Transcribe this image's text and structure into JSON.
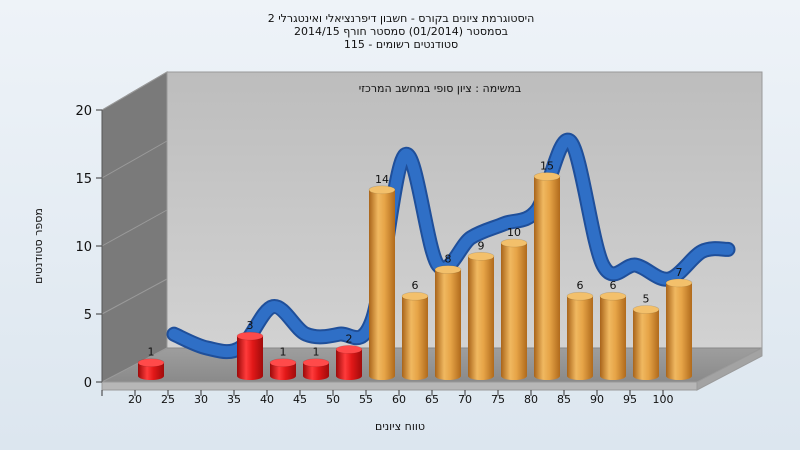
{
  "chart_data": {
    "type": "bar",
    "title_lines": [
      "היסטוגרמת ציונים בקורס - חשבון דיפרנציאלי ואינטגרלי 2",
      "בסמסטר  (01/2014)  סמסטר חורף 2014/15",
      "115 - סטודנטים רשומים"
    ],
    "subtitle": "במשימה : ציון סופי במחשב המרכזי",
    "xlabel": "טווח ציונים",
    "ylabel": "מספר סטודנטים",
    "ylim": [
      0,
      20
    ],
    "yticks": [
      0,
      5,
      10,
      15,
      20
    ],
    "x_ticks": [
      "20",
      "25",
      "30",
      "35",
      "40",
      "45",
      "50",
      "55",
      "60",
      "65",
      "70",
      "75",
      "80",
      "85",
      "90",
      "95",
      "100"
    ],
    "categories": [
      "20",
      "25",
      "30",
      "35",
      "40",
      "45",
      "50",
      "55",
      "60",
      "65",
      "70",
      "75",
      "80",
      "85",
      "90",
      "95",
      "100"
    ],
    "values": [
      1,
      0,
      0,
      3,
      1,
      1,
      2,
      14,
      6,
      8,
      9,
      10,
      15,
      6,
      6,
      5,
      7
    ],
    "bar_colors_by_threshold": {
      "below_55": "#d81414",
      "from_55": "#e0a13c"
    },
    "trend_line": {
      "type": "smoothed ribbon",
      "color": "#2f6fc6",
      "values": [
        1,
        0,
        0,
        3,
        1,
        1,
        2,
        14,
        6,
        8,
        9,
        10,
        15,
        6,
        6,
        5,
        7
      ]
    },
    "grid": false
  }
}
